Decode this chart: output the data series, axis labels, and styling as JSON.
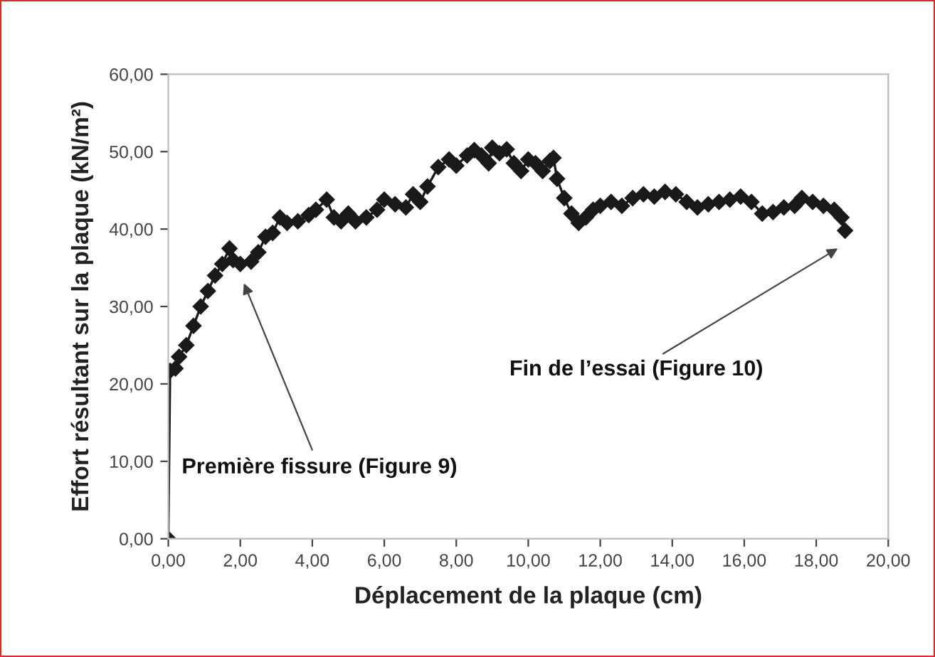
{
  "chart_data": {
    "type": "line",
    "xlabel": "Déplacement de la plaque (cm)",
    "ylabel": "Effort résultant sur la plaque (kN/m²)",
    "x": [
      0,
      0.05,
      0.2,
      0.3,
      0.5,
      0.7,
      0.9,
      1.1,
      1.3,
      1.5,
      1.7,
      1.8,
      2.0,
      2.3,
      2.5,
      2.7,
      2.9,
      3.1,
      3.3,
      3.6,
      3.9,
      4.1,
      4.4,
      4.6,
      4.8,
      5.0,
      5.2,
      5.5,
      5.8,
      6.0,
      6.3,
      6.6,
      6.8,
      7.0,
      7.2,
      7.5,
      7.8,
      8.0,
      8.3,
      8.5,
      8.7,
      8.9,
      9.0,
      9.2,
      9.4,
      9.6,
      9.8,
      10.0,
      10.2,
      10.4,
      10.6,
      10.7,
      10.8,
      11.0,
      11.2,
      11.4,
      11.6,
      11.8,
      12.0,
      12.3,
      12.6,
      12.9,
      13.2,
      13.5,
      13.8,
      14.1,
      14.4,
      14.7,
      15.0,
      15.3,
      15.6,
      15.9,
      16.2,
      16.5,
      16.8,
      17.1,
      17.4,
      17.6,
      17.9,
      18.2,
      18.5,
      18.7,
      18.8
    ],
    "series": [
      {
        "color": "#1a1a1a",
        "values": [
          0,
          21.7,
          22,
          23.5,
          25,
          27.5,
          30,
          32,
          34,
          35.5,
          37.5,
          36,
          35.5,
          35.8,
          37,
          39,
          39.5,
          41.5,
          40.8,
          41,
          41.8,
          42.5,
          43.8,
          41.5,
          41,
          42,
          41,
          41.5,
          42.5,
          43.8,
          43.2,
          42.8,
          44.5,
          43.5,
          45.5,
          48,
          49,
          48.2,
          49.5,
          50.2,
          49.5,
          48.5,
          50.5,
          49.8,
          50.3,
          48.5,
          47.5,
          49,
          48.5,
          47.5,
          48.8,
          49.2,
          46.5,
          44,
          42,
          40.8,
          41.5,
          42.5,
          43,
          43.5,
          43,
          44,
          44.5,
          44.2,
          44.8,
          44.5,
          43.5,
          42.8,
          43.2,
          43.5,
          43.8,
          44.2,
          43.5,
          42,
          42.2,
          42.8,
          43,
          44,
          43.5,
          43,
          42.5,
          41.5,
          39.8
        ]
      }
    ],
    "marker": "diamond",
    "line_style": "solid",
    "xlim": [
      0,
      20
    ],
    "ylim": [
      0,
      60
    ],
    "xticks": [
      {
        "value": 0,
        "label": "0,00"
      },
      {
        "value": 2,
        "label": "2,00"
      },
      {
        "value": 4,
        "label": "4,00"
      },
      {
        "value": 6,
        "label": "6,00"
      },
      {
        "value": 8,
        "label": "8,00"
      },
      {
        "value": 10,
        "label": "10,00"
      },
      {
        "value": 12,
        "label": "12,00"
      },
      {
        "value": 14,
        "label": "14,00"
      },
      {
        "value": 16,
        "label": "16,00"
      },
      {
        "value": 18,
        "label": "18,00"
      },
      {
        "value": 20,
        "label": "20,00"
      }
    ],
    "yticks": [
      {
        "value": 0,
        "label": "0,00"
      },
      {
        "value": 10,
        "label": "10,00"
      },
      {
        "value": 20,
        "label": "20,00"
      },
      {
        "value": 30,
        "label": "30,00"
      },
      {
        "value": 40,
        "label": "40,00"
      },
      {
        "value": 50,
        "label": "50,00"
      },
      {
        "value": 60,
        "label": "60,00"
      }
    ],
    "grid": false,
    "legend": false,
    "annotations": [
      "Première fissure (Figure 9)",
      "Fin de l’essai (Figure 10)"
    ]
  }
}
